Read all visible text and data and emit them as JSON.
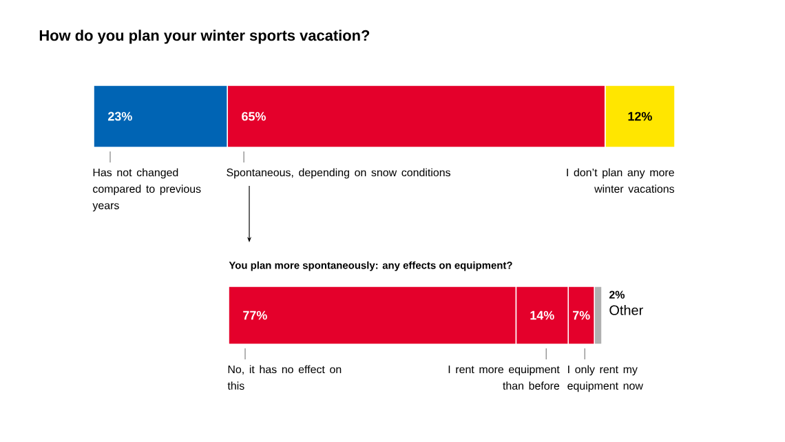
{
  "chart_data": [
    {
      "type": "bar",
      "title": "How do you plan your winter sports vacation?",
      "orientation": "horizontal",
      "stacked": true,
      "categories": [
        null
      ],
      "series": [
        {
          "name": "Has not changed compared to previous years",
          "color": "#0064b4",
          "values": [
            23
          ],
          "value_labels": [
            "23%"
          ]
        },
        {
          "name": "Spontaneous, depending on snow conditions",
          "color": "#e4002b",
          "values": [
            65
          ],
          "value_labels": [
            "65%"
          ]
        },
        {
          "name": "I don’t plan any more winter vacations",
          "color": "#ffe600",
          "values": [
            12
          ],
          "value_labels": [
            "12%"
          ]
        }
      ]
    },
    {
      "type": "bar",
      "title": "You plan more spontaneously: any effects on equipment?",
      "orientation": "horizontal",
      "stacked": true,
      "categories": [
        null
      ],
      "series": [
        {
          "name": "No, it has no effect on this",
          "color": "#e4002b",
          "values": [
            77
          ],
          "value_labels": [
            "77%"
          ]
        },
        {
          "name": "I rent more equipment than before",
          "color": "#e4002b",
          "values": [
            14
          ],
          "value_labels": [
            "14%"
          ]
        },
        {
          "name": "I only rent my equipment now",
          "color": "#e4002b",
          "values": [
            7
          ],
          "value_labels": [
            "7%"
          ]
        },
        {
          "name": "Other",
          "color": "#b0b0b0",
          "values": [
            2
          ],
          "value_labels": [
            "2%"
          ]
        }
      ]
    }
  ]
}
